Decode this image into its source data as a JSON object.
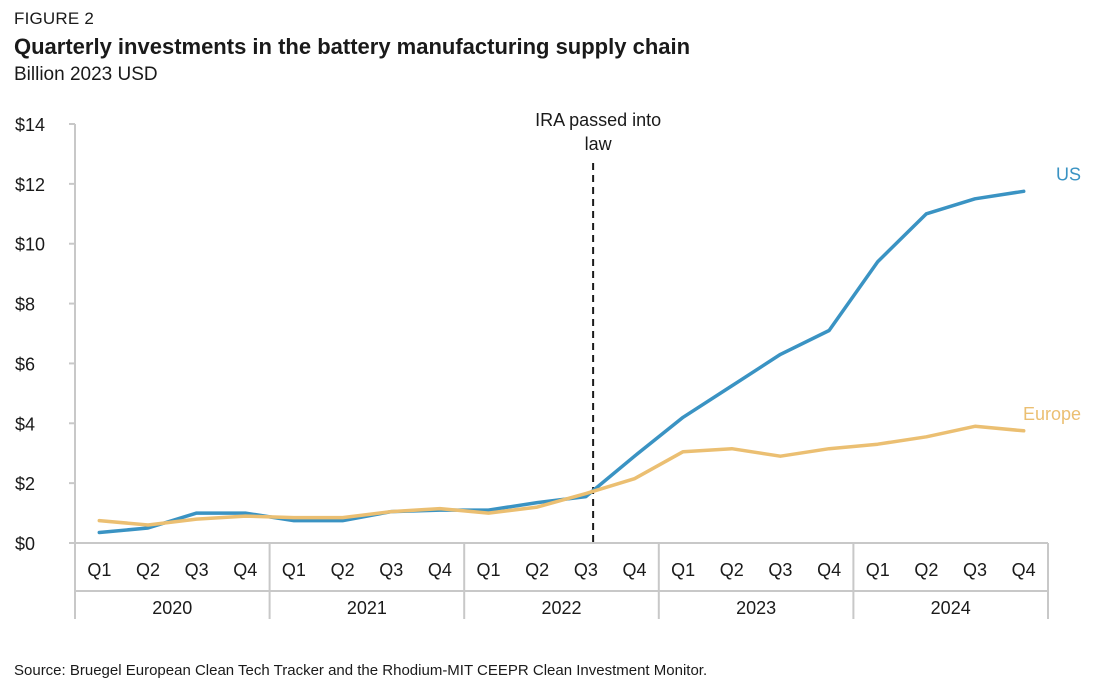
{
  "figure_label": "FIGURE 2",
  "source": "Source: Bruegel European Clean Tech Tracker and the Rhodium-MIT CEEPR Clean Investment Monitor.",
  "chart_data": {
    "type": "line",
    "title": "Quarterly investments in the battery manufacturing supply chain",
    "subtitle": "Billion 2023 USD",
    "xlabel": "",
    "ylabel": "",
    "ylim": [
      0,
      14
    ],
    "yticks": [
      0,
      2,
      4,
      6,
      8,
      10,
      12,
      14
    ],
    "ytick_labels": [
      "$0",
      "$2",
      "$4",
      "$6",
      "$8",
      "$10",
      "$12",
      "$14"
    ],
    "grid": false,
    "categories": [
      "Q1",
      "Q2",
      "Q3",
      "Q4",
      "Q1",
      "Q2",
      "Q3",
      "Q4",
      "Q1",
      "Q2",
      "Q3",
      "Q4",
      "Q1",
      "Q2",
      "Q3",
      "Q4",
      "Q1",
      "Q2",
      "Q3",
      "Q4"
    ],
    "year_groups": [
      {
        "label": "2020",
        "start": 0,
        "end": 3
      },
      {
        "label": "2021",
        "start": 4,
        "end": 7
      },
      {
        "label": "2022",
        "start": 8,
        "end": 11
      },
      {
        "label": "2023",
        "start": 12,
        "end": 15
      },
      {
        "label": "2024",
        "start": 16,
        "end": 19
      }
    ],
    "series": [
      {
        "name": "US",
        "color": "#3a93c3",
        "values": [
          0.35,
          0.5,
          1.0,
          1.0,
          0.75,
          0.75,
          1.05,
          1.1,
          1.1,
          1.35,
          1.55,
          2.9,
          4.2,
          5.25,
          6.3,
          7.1,
          9.4,
          11.0,
          11.5,
          11.75
        ]
      },
      {
        "name": "Europe",
        "color": "#ebbf72",
        "values": [
          0.75,
          0.6,
          0.8,
          0.9,
          0.85,
          0.85,
          1.05,
          1.15,
          1.0,
          1.2,
          1.65,
          2.15,
          3.05,
          3.15,
          2.9,
          3.15,
          3.3,
          3.55,
          3.9,
          3.75
        ]
      }
    ],
    "annotations": [
      {
        "text_lines": [
          "IRA passed into",
          "law"
        ],
        "at_x": 10.65,
        "style": "dashed-vertical-line"
      }
    ]
  }
}
